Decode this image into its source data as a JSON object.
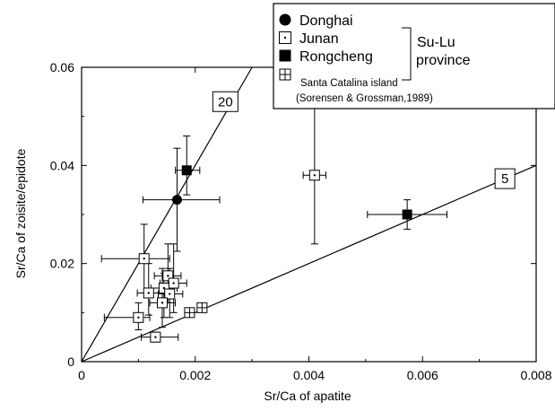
{
  "chart_data": {
    "type": "scatter",
    "xlabel": "Sr/Ca of apatite",
    "ylabel": "Sr/Ca of zoisite/epidote",
    "xlim": [
      0,
      0.008
    ],
    "ylim": [
      0,
      0.06
    ],
    "x_ticks": [
      {
        "value": 0,
        "label": "0"
      },
      {
        "value": 0.002,
        "label": "0.002"
      },
      {
        "value": 0.004,
        "label": "0.004"
      },
      {
        "value": 0.006,
        "label": "0.006"
      },
      {
        "value": 0.008,
        "label": "0.008"
      }
    ],
    "y_ticks": [
      {
        "value": 0,
        "label": "0"
      },
      {
        "value": 0.02,
        "label": "0.02"
      },
      {
        "value": 0.04,
        "label": "0.04"
      },
      {
        "value": 0.06,
        "label": "0.06"
      }
    ],
    "grid": false,
    "legend_position": "top-right",
    "legend": {
      "group_label_line1": "Su-Lu",
      "group_label_line2": "province",
      "caption_line1": "Santa Catalina island",
      "caption_line2": "(Sorensen & Grossman,1989)"
    },
    "reference_lines": [
      {
        "label": "20",
        "slope": 20,
        "label_at": [
          0.00253,
          0.053
        ]
      },
      {
        "label": "5",
        "slope": 5,
        "label_at": [
          0.00745,
          0.0373
        ]
      }
    ],
    "series": [
      {
        "name": "Donghai",
        "marker": "filled-circle",
        "points": [
          {
            "x": 0.00168,
            "y": 0.033,
            "xerr": [
              0.00108,
              0.00243
            ],
            "yerr": [
              0.0225,
              0.0435
            ]
          }
        ]
      },
      {
        "name": "Junan",
        "marker": "dotted-square",
        "points": [
          {
            "x": 0.0011,
            "y": 0.021,
            "xerr": [
              0.00035,
              0.00155
            ],
            "yerr": [
              0.014,
              0.028
            ]
          },
          {
            "x": 0.00118,
            "y": 0.014,
            "xerr": [
              0.00098,
              0.00145
            ],
            "yerr": [
              0.0095,
              0.02
            ]
          },
          {
            "x": 0.00152,
            "y": 0.0175,
            "xerr": [
              0.00128,
              0.00175
            ],
            "yerr": [
              0.012,
              0.024
            ]
          },
          {
            "x": 0.00162,
            "y": 0.016,
            "xerr": [
              0.00138,
              0.00185
            ],
            "yerr": [
              0.01,
              0.024
            ]
          },
          {
            "x": 0.00145,
            "y": 0.015,
            "xerr": [
              0.00122,
              0.00168
            ],
            "yerr": [
              0.009,
              0.018
            ]
          },
          {
            "x": 0.00155,
            "y": 0.0138,
            "xerr": [
              0.00135,
              0.00178
            ],
            "yerr": [
              0.009,
              0.019
            ]
          },
          {
            "x": 0.00142,
            "y": 0.012,
            "xerr": [
              0.0012,
              0.00165
            ],
            "yerr": [
              0.007,
              0.019
            ]
          },
          {
            "x": 0.001,
            "y": 0.009,
            "xerr": [
              0.0004,
              0.0012
            ],
            "yerr": [
              0.0065,
              0.012
            ]
          },
          {
            "x": 0.0013,
            "y": 0.005,
            "xerr": [
              0.00105,
              0.0017
            ],
            "yerr": [
              0.004,
              0.006
            ]
          },
          {
            "x": 0.0041,
            "y": 0.038,
            "xerr": [
              0.0039,
              0.0043
            ],
            "yerr": [
              0.024,
              0.052
            ]
          }
        ]
      },
      {
        "name": "Rongcheng",
        "marker": "filled-square",
        "points": [
          {
            "x": 0.00185,
            "y": 0.039,
            "xerr": [
              0.00165,
              0.00208
            ],
            "yerr": [
              0.034,
              0.046
            ]
          },
          {
            "x": 0.00573,
            "y": 0.03,
            "xerr": [
              0.00503,
              0.00643
            ],
            "yerr": [
              0.027,
              0.033
            ]
          }
        ]
      },
      {
        "name": "",
        "marker": "crossed-square",
        "points": [
          {
            "x": 0.0019,
            "y": 0.01
          },
          {
            "x": 0.00212,
            "y": 0.011
          }
        ]
      }
    ]
  }
}
